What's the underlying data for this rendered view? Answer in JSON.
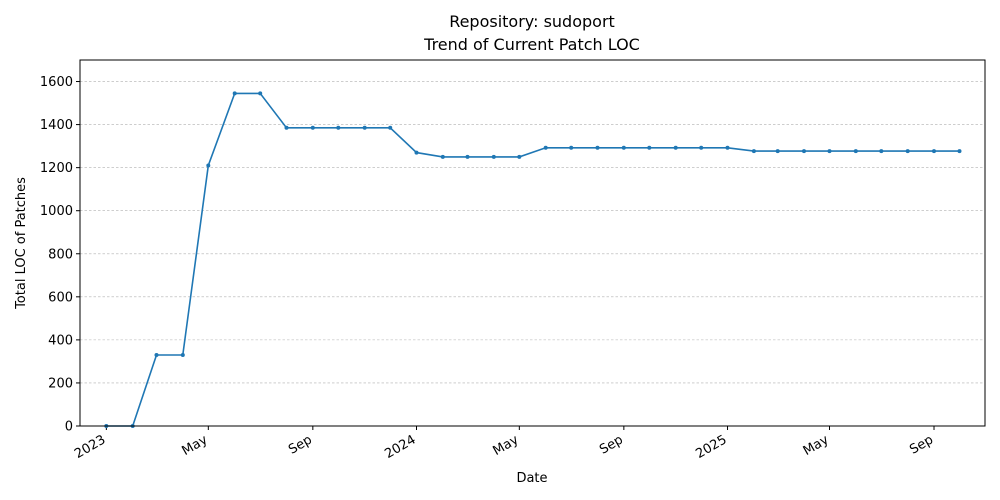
{
  "chart_data": {
    "type": "line",
    "title": "Repository: sudoport",
    "subtitle": "Trend of Current Patch LOC",
    "xlabel": "Date",
    "ylabel": "Total LOC of Patches",
    "ylim": [
      0,
      1700
    ],
    "yticks": [
      0,
      200,
      400,
      600,
      800,
      1000,
      1200,
      1400,
      1600
    ],
    "xlim": [
      "2022-12-01",
      "2025-10-31"
    ],
    "xticks": [
      {
        "date": "2023-01-01",
        "label": "2023"
      },
      {
        "date": "2023-05-01",
        "label": "May"
      },
      {
        "date": "2023-09-01",
        "label": "Sep"
      },
      {
        "date": "2024-01-01",
        "label": "2024"
      },
      {
        "date": "2024-05-01",
        "label": "May"
      },
      {
        "date": "2024-09-01",
        "label": "Sep"
      },
      {
        "date": "2025-01-01",
        "label": "2025"
      },
      {
        "date": "2025-05-01",
        "label": "May"
      },
      {
        "date": "2025-09-01",
        "label": "Sep"
      }
    ],
    "grid": "y-dashed",
    "color": "#1f77b4",
    "x": [
      "2023-01-01",
      "2023-02-01",
      "2023-03-01",
      "2023-04-01",
      "2023-05-01",
      "2023-06-01",
      "2023-07-01",
      "2023-08-01",
      "2023-09-01",
      "2023-10-01",
      "2023-11-01",
      "2023-12-01",
      "2024-01-01",
      "2024-02-01",
      "2024-03-01",
      "2024-04-01",
      "2024-05-01",
      "2024-06-01",
      "2024-07-01",
      "2024-08-01",
      "2024-09-01",
      "2024-10-01",
      "2024-11-01",
      "2024-12-01",
      "2025-01-01",
      "2025-02-01",
      "2025-03-01",
      "2025-04-01",
      "2025-05-01",
      "2025-06-01",
      "2025-07-01",
      "2025-08-01",
      "2025-09-01",
      "2025-10-01"
    ],
    "values": [
      0,
      0,
      330,
      330,
      1210,
      1545,
      1545,
      1385,
      1385,
      1385,
      1385,
      1385,
      1270,
      1250,
      1250,
      1250,
      1250,
      1292,
      1292,
      1292,
      1292,
      1292,
      1292,
      1292,
      1292,
      1277,
      1277,
      1277,
      1277,
      1277,
      1277,
      1277,
      1277,
      1277
    ]
  }
}
